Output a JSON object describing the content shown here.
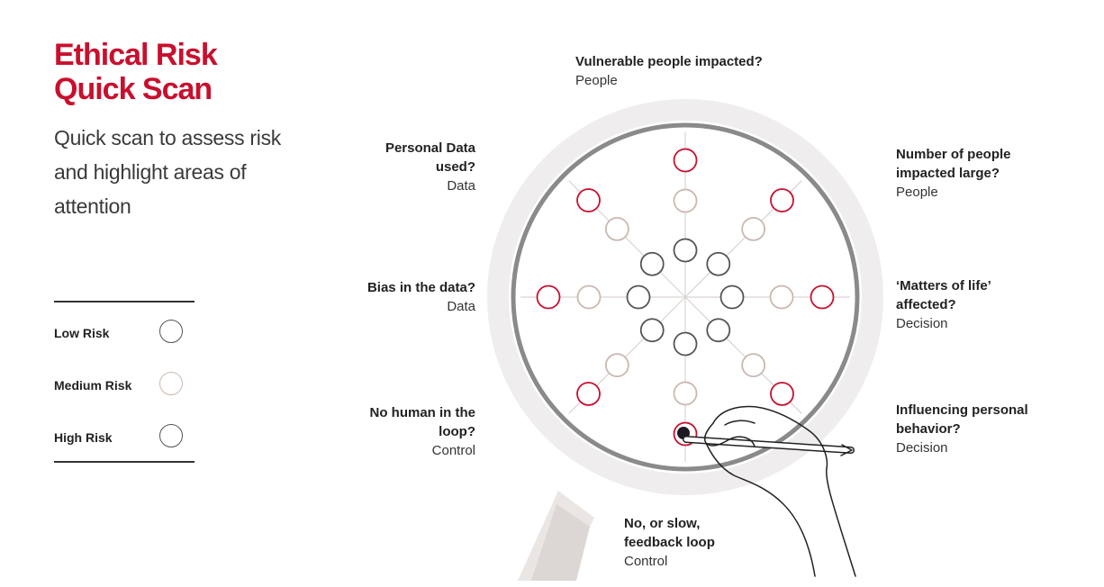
{
  "title": {
    "line1": "Ethical Risk",
    "line2": "Quick Scan"
  },
  "subtitle": "Quick scan to assess risk and highlight areas of attention",
  "legend": [
    {
      "label": "Low Risk",
      "color": "#444444"
    },
    {
      "label": "Medium Risk",
      "color": "#c9b8b0"
    },
    {
      "label": "High Risk",
      "color": "#c8102e"
    }
  ],
  "questions": {
    "vulnerable": {
      "question": "Vulnerable people impacted?",
      "category": "People"
    },
    "number_large": {
      "question": "Number of people impacted large?",
      "category": "People"
    },
    "matters_of_life": {
      "question": "‘Matters of life’ affected?",
      "category": "Decision"
    },
    "influencing": {
      "question": "Influencing personal behavior?",
      "category": "Decision"
    },
    "feedback": {
      "question": "No, or slow, feedback loop",
      "category": "Control"
    },
    "no_human": {
      "question": "No human in the loop?",
      "category": "Control"
    },
    "bias": {
      "question": "Bias in the data?",
      "category": "Data"
    },
    "personal_data": {
      "question": "Personal Data used?",
      "category": "Data"
    }
  },
  "selected": {
    "axis": "feedback",
    "level": "High Risk"
  },
  "colors": {
    "accent": "#c8102e",
    "low": "#555555",
    "medium": "#c9b8b0",
    "high": "#c8102e",
    "ring": "#8a8a8a",
    "halo": "#efeded"
  }
}
